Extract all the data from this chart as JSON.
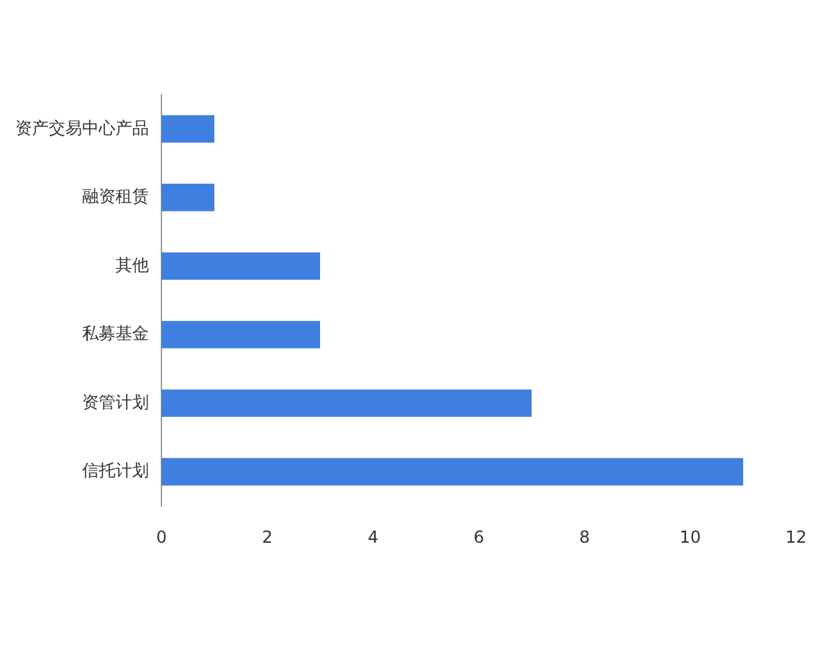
{
  "chart_data": {
    "type": "bar",
    "orientation": "horizontal",
    "categories": [
      "资产交易中心产品",
      "融资租赁",
      "其他",
      "私募基金",
      "资管计划",
      "信托计划"
    ],
    "values": [
      1,
      1,
      3,
      3,
      7,
      11
    ],
    "color": "#3f7fe0",
    "xlim": [
      0,
      12
    ],
    "xticks": [
      0,
      2,
      4,
      6,
      8,
      10,
      12
    ],
    "grid": false,
    "legend": false
  }
}
